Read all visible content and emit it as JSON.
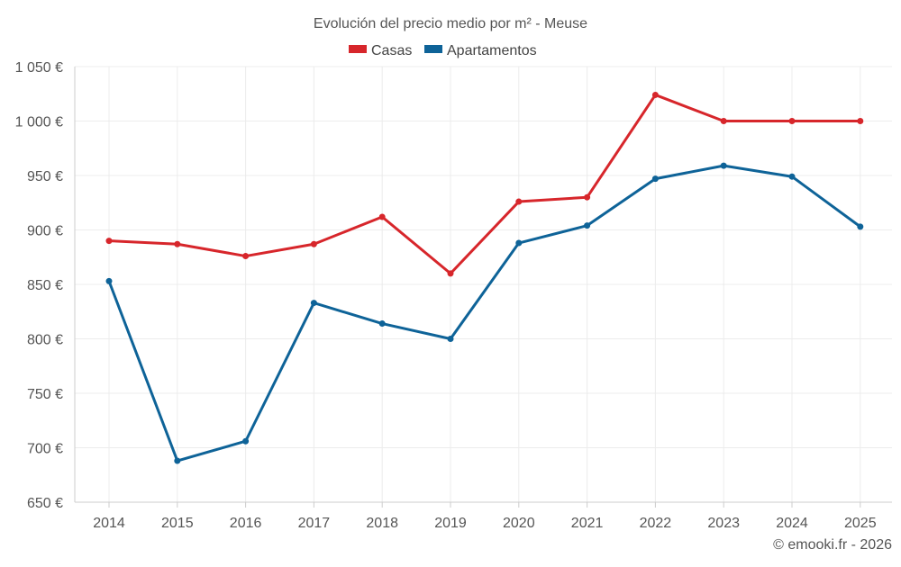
{
  "chart_data": {
    "type": "line",
    "title": "Evolución del precio medio por m² - Meuse",
    "categories": [
      "2014",
      "2015",
      "2016",
      "2017",
      "2018",
      "2019",
      "2020",
      "2021",
      "2022",
      "2023",
      "2024",
      "2025"
    ],
    "series": [
      {
        "name": "Casas",
        "color": "#d7262b",
        "values": [
          890,
          887,
          876,
          887,
          912,
          860,
          926,
          930,
          1024,
          1000,
          1000,
          1000
        ]
      },
      {
        "name": "Apartamentos",
        "color": "#0e6398",
        "values": [
          853,
          688,
          706,
          833,
          814,
          800,
          888,
          904,
          947,
          959,
          949,
          903
        ]
      }
    ],
    "y_ticks": [
      650,
      700,
      750,
      800,
      850,
      900,
      950,
      1000,
      1050
    ],
    "y_tick_labels": [
      "650 €",
      "700 €",
      "750 €",
      "800 €",
      "850 €",
      "900 €",
      "950 €",
      "1 000 €",
      "1 050 €"
    ],
    "ylim": [
      650,
      1050
    ],
    "xlabel": "",
    "ylabel": "",
    "grid": true,
    "legend_position": "top-center"
  },
  "credit": "© emooki.fr - 2026",
  "colors": {
    "grid": "#ececec",
    "axis": "#cccccc",
    "text": "#555555"
  }
}
